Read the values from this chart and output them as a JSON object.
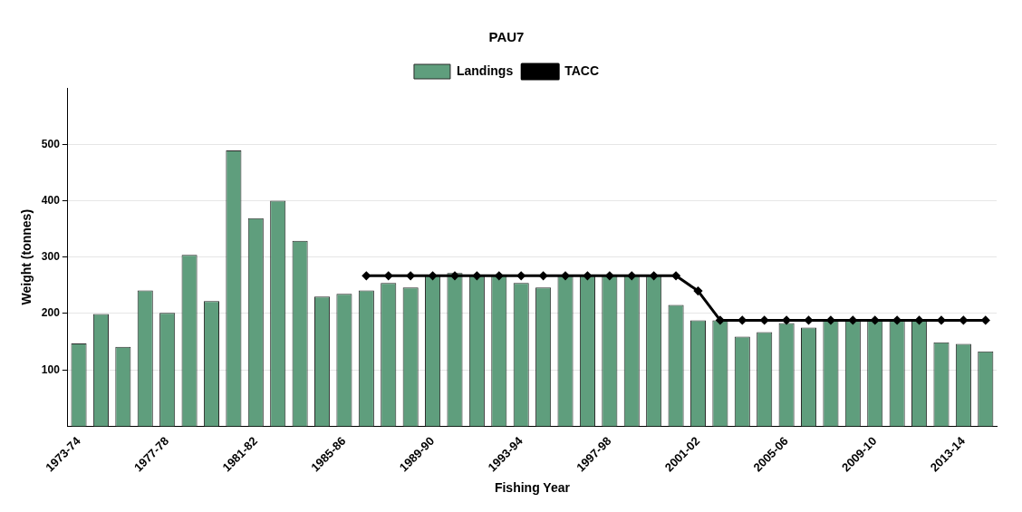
{
  "chart_data": {
    "type": "bar",
    "title": "PAU7",
    "xlabel": "Fishing Year",
    "ylabel": "Weight (tonnes)",
    "categories": [
      "1973-74",
      null,
      null,
      null,
      "1977-78",
      null,
      null,
      null,
      "1981-82",
      null,
      null,
      null,
      "1985-86",
      null,
      null,
      null,
      "1989-90",
      null,
      null,
      null,
      "1993-94",
      null,
      null,
      null,
      "1997-98",
      null,
      null,
      null,
      "2001-02",
      null,
      null,
      null,
      "2005-06",
      null,
      null,
      null,
      "2009-10",
      null,
      null,
      null,
      "2013-14",
      null
    ],
    "series": [
      {
        "name": "Landings",
        "color": "#5f9e7d",
        "values": [
          147,
          199,
          141,
          241,
          201,
          304,
          222,
          489,
          369,
          400,
          329,
          230,
          235,
          241,
          254,
          246,
          267,
          272,
          267,
          267,
          254,
          246,
          267,
          267,
          267,
          267,
          267,
          215,
          188,
          188,
          159,
          167,
          183,
          175,
          188,
          188,
          188,
          188,
          188,
          149,
          146,
          133
        ]
      },
      {
        "name": "TACC",
        "type": "line",
        "color": "#000000",
        "marker": "diamond",
        "values": [
          null,
          null,
          null,
          null,
          null,
          null,
          null,
          null,
          null,
          null,
          null,
          null,
          null,
          267,
          267,
          267,
          267,
          267,
          267,
          267,
          267,
          267,
          267,
          267,
          267,
          267,
          267,
          267,
          240,
          188,
          188,
          188,
          188,
          188,
          188,
          188,
          188,
          188,
          188,
          188,
          188,
          188
        ]
      }
    ],
    "ylim": [
      0,
      600
    ],
    "yticks": [
      100,
      200,
      300,
      400,
      500
    ],
    "grid": "y",
    "legend": "top"
  }
}
